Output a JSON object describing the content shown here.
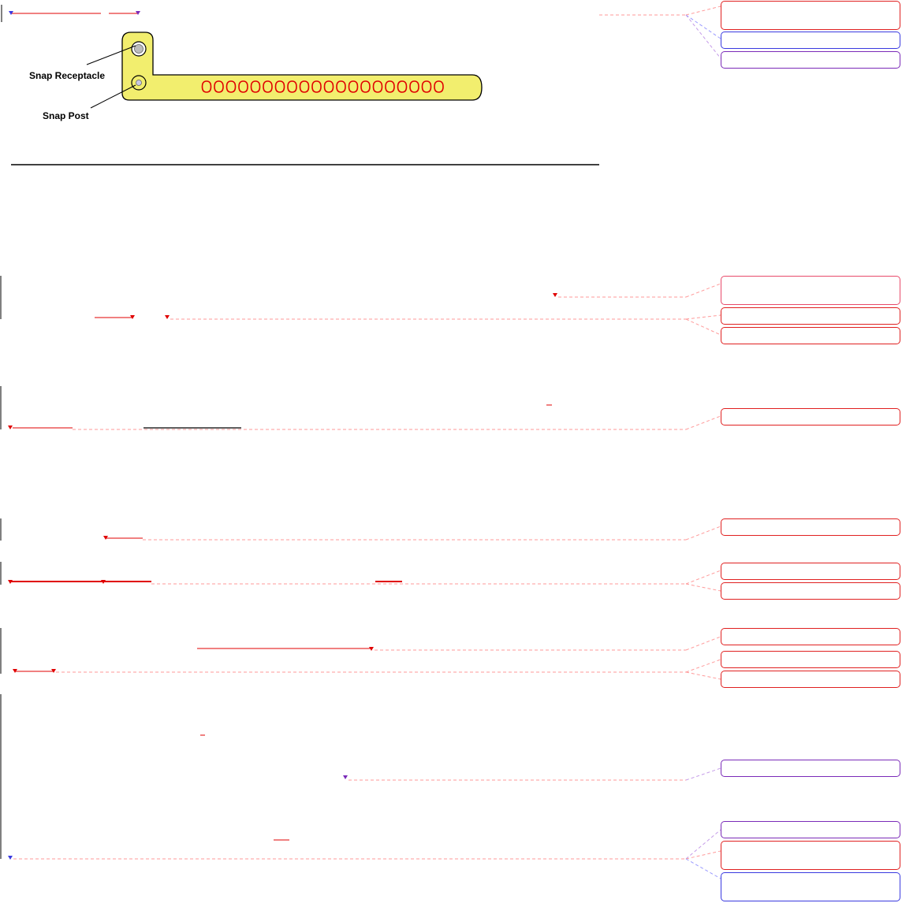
{
  "figure": {
    "labels": {
      "snap_receptacle": "Snap Receptacle",
      "snap_post": "Snap Post"
    },
    "colors": {
      "band_fill": "#f2ee6e",
      "band_outline": "#000000",
      "holes": "#e00000",
      "receptacle_fill": "#bdbdbd",
      "post_fill": "#c8c8e6"
    },
    "hole_count": 20
  },
  "markup": {
    "colors": {
      "insertion": "#e00000",
      "deletion": "#7a2ab8",
      "comment": "#2a2ae0",
      "leader": "#ff8a8a"
    }
  }
}
